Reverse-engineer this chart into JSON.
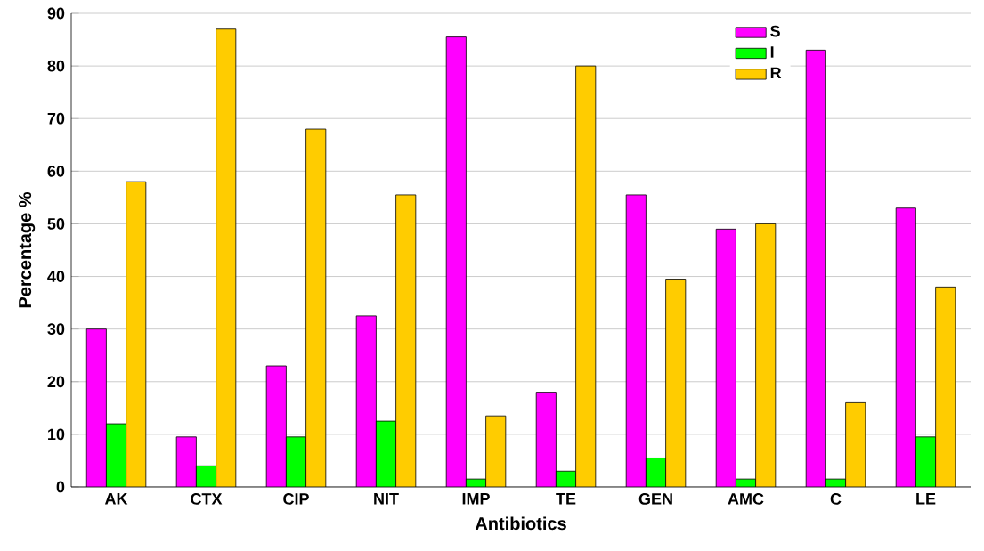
{
  "chart_data": {
    "type": "bar",
    "xlabel": "Antibiotics",
    "ylabel": "Percentage %",
    "categories": [
      "AK",
      "CTX",
      "CIP",
      "NIT",
      "IMP",
      "TE",
      "GEN",
      "AMC",
      "C",
      "LE"
    ],
    "series": [
      {
        "name": "S",
        "color": "#ff00ff",
        "values": [
          30,
          9.5,
          23,
          32.5,
          85.5,
          18,
          55.5,
          49,
          83,
          53
        ]
      },
      {
        "name": "I",
        "color": "#00ff00",
        "values": [
          12,
          4,
          9.5,
          12.5,
          1.5,
          3,
          5.5,
          1.5,
          1.5,
          9.5
        ]
      },
      {
        "name": "R",
        "color": "#ffcc00",
        "values": [
          58,
          87,
          68,
          55.5,
          13.5,
          80,
          39.5,
          50,
          16,
          38
        ]
      }
    ],
    "ylim": [
      0,
      90
    ],
    "yticks": [
      0,
      10,
      20,
      30,
      40,
      50,
      60,
      70,
      80,
      90
    ],
    "grid": "y",
    "legend": "top right"
  }
}
